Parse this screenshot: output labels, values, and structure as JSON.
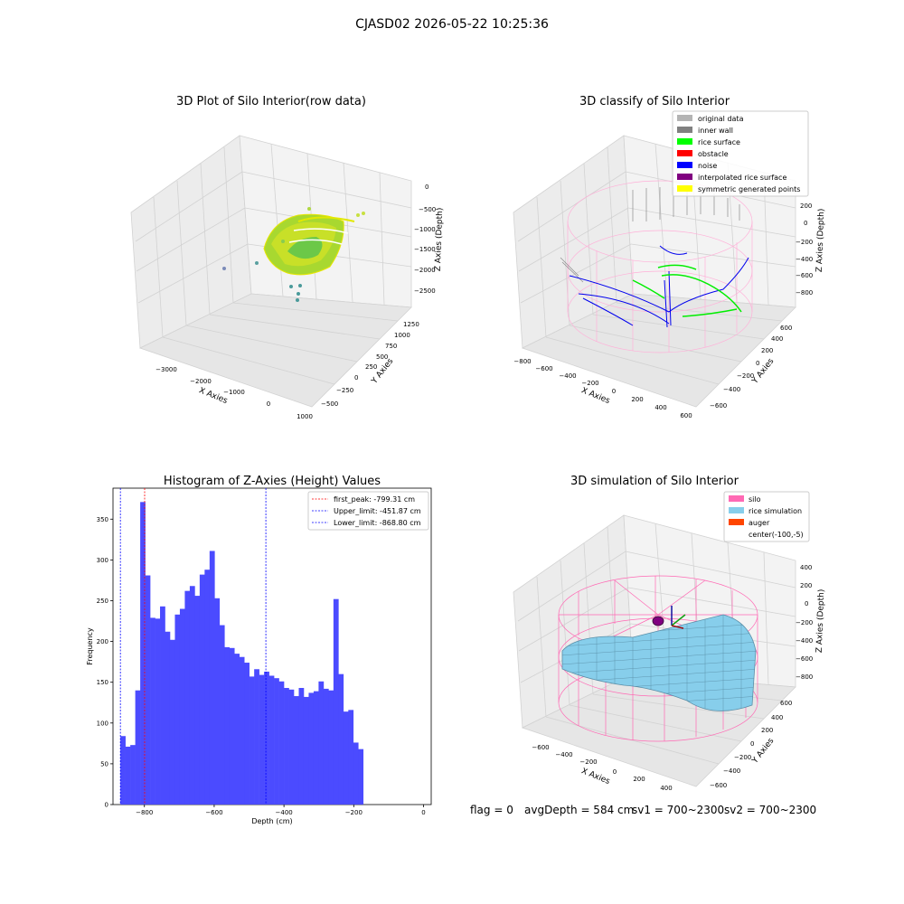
{
  "figure": {
    "suptitle": "CJASD02 2026-05-22 10:25:36",
    "footer_flag": "flag = 0",
    "footer_avg": "avgDepth = 584 cm",
    "footer_sv1": "sv1 = 700~2300",
    "footer_sv2": "sv2 = 700~2300"
  },
  "panels": {
    "raw": {
      "title": "3D Plot of Silo Interior(row data)",
      "xlabel": "X Axies",
      "ylabel": "Y Axies",
      "zlabel": "Z Axies (Depth)",
      "xticks": [
        "−3000",
        "−2000",
        "−1000",
        "0",
        "1000"
      ],
      "yticks": [
        "−500",
        "−250",
        "0",
        "250",
        "500",
        "750",
        "1000",
        "1250"
      ],
      "zticks": [
        "0",
        "−500",
        "−1000",
        "−1500",
        "−2000",
        "−2500"
      ]
    },
    "classify": {
      "title": "3D classify of Silo Interior",
      "xlabel": "X Axies",
      "ylabel": "Y Axies",
      "zlabel": "Z Axies (Depth)",
      "xticks": [
        "−800",
        "−600",
        "−400",
        "−200",
        "0",
        "200",
        "400",
        "600"
      ],
      "yticks": [
        "−600",
        "−400",
        "−200",
        "0",
        "200",
        "400",
        "600"
      ],
      "zticks": [
        "200",
        "0",
        "−200",
        "−400",
        "−600",
        "−800"
      ],
      "legend": [
        {
          "label": "original data",
          "color": "#b4b4b4"
        },
        {
          "label": "inner wall",
          "color": "#808080"
        },
        {
          "label": "rice surface",
          "color": "#00ff00"
        },
        {
          "label": "obstacle",
          "color": "#ff0000"
        },
        {
          "label": "noise",
          "color": "#0000ff"
        },
        {
          "label": "interpolated rice surface",
          "color": "#800080"
        },
        {
          "label": "symmetric generated points",
          "color": "#ffff00"
        }
      ]
    },
    "simulation": {
      "title": "3D simulation of Silo Interior",
      "xlabel": "X Axies",
      "ylabel": "Y Axies",
      "zlabel": "Z Axies (Depth)",
      "xticks": [
        "−600",
        "−400",
        "−200",
        "0",
        "200",
        "400"
      ],
      "yticks": [
        "−600",
        "−400",
        "−200",
        "0",
        "200",
        "400",
        "600"
      ],
      "zticks": [
        "400",
        "200",
        "0",
        "−200",
        "−400",
        "−600",
        "−800"
      ],
      "legend": [
        {
          "label": "silo",
          "color": "#ff69b4"
        },
        {
          "label": "rice simulation",
          "color": "#87ceeb"
        },
        {
          "label": "auger",
          "color": "#ff4500"
        },
        {
          "label": "center(-100,-5)",
          "color": ""
        }
      ]
    }
  },
  "chart_data": {
    "type": "bar",
    "title": "Histogram of Z-Axies (Height) Values",
    "xlabel": "Depth (cm)",
    "ylabel": "Frequency",
    "xlim": [
      -890,
      22
    ],
    "ylim": [
      0,
      388
    ],
    "bin_start": -868.8,
    "bin_width": 14.2,
    "bar_color": "#4b4bff",
    "values": [
      84,
      71,
      73,
      140,
      371,
      281,
      229,
      228,
      243,
      212,
      202,
      233,
      240,
      262,
      268,
      256,
      282,
      288,
      311,
      253,
      220,
      193,
      192,
      185,
      181,
      174,
      157,
      166,
      159,
      163,
      158,
      155,
      151,
      143,
      141,
      133,
      143,
      132,
      137,
      139,
      151,
      142,
      140,
      252,
      160,
      114,
      116,
      76,
      68
    ],
    "xticks": [
      {
        "value": -800,
        "label": "−800"
      },
      {
        "value": -600,
        "label": "−600"
      },
      {
        "value": -400,
        "label": "−400"
      },
      {
        "value": -200,
        "label": "−200"
      },
      {
        "value": 0,
        "label": "0"
      }
    ],
    "yticks": [
      {
        "value": 0,
        "label": "0"
      },
      {
        "value": 50,
        "label": "50"
      },
      {
        "value": 100,
        "label": "100"
      },
      {
        "value": 150,
        "label": "150"
      },
      {
        "value": 200,
        "label": "200"
      },
      {
        "value": 250,
        "label": "250"
      },
      {
        "value": 300,
        "label": "300"
      },
      {
        "value": 350,
        "label": "350"
      }
    ],
    "lines": [
      {
        "x": -799.31,
        "color": "#ff0000",
        "label": "first_peak: -799.31 cm"
      },
      {
        "x": -451.87,
        "color": "#0000ff",
        "label": "Upper_limit: -451.87 cm"
      },
      {
        "x": -868.8,
        "color": "#0000ff",
        "label": "Lower_limit: -868.80 cm"
      }
    ]
  }
}
